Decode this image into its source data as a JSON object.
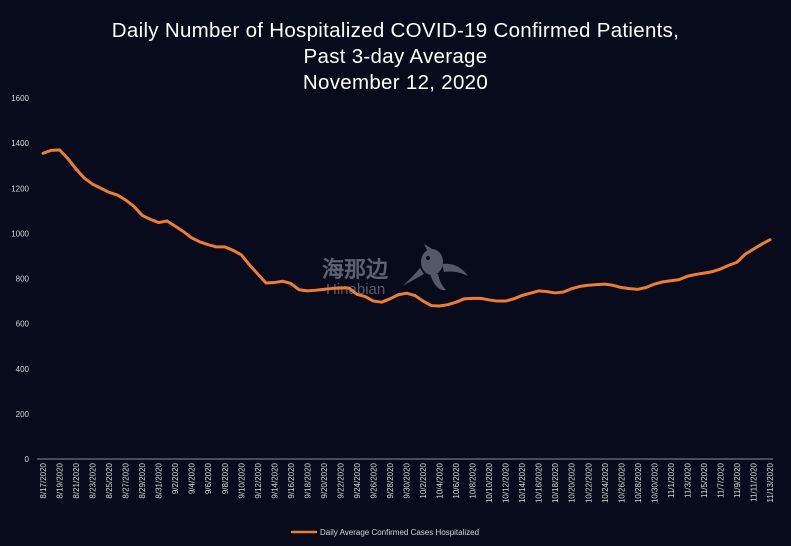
{
  "chart_data": {
    "type": "line",
    "title": [
      "Daily Number of Hospitalized COVID-19 Confirmed Patients,",
      "Past 3-day Average",
      "November 12, 2020"
    ],
    "xlabel": "",
    "ylabel": "",
    "ylim": [
      0,
      1600
    ],
    "yticks": [
      0,
      200,
      400,
      600,
      800,
      1000,
      1200,
      1400,
      1600
    ],
    "grid": false,
    "legend_position": "bottom",
    "categories": [
      "8/17/2020",
      "8/18/2020",
      "8/19/2020",
      "8/20/2020",
      "8/21/2020",
      "8/22/2020",
      "8/23/2020",
      "8/24/2020",
      "8/25/2020",
      "8/26/2020",
      "8/27/2020",
      "8/28/2020",
      "8/29/2020",
      "8/30/2020",
      "8/31/2020",
      "9/1/2020",
      "9/2/2020",
      "9/3/2020",
      "9/4/2020",
      "9/5/2020",
      "9/6/2020",
      "9/7/2020",
      "9/8/2020",
      "9/9/2020",
      "9/10/2020",
      "9/11/2020",
      "9/12/2020",
      "9/13/2020",
      "9/14/2020",
      "9/15/2020",
      "9/16/2020",
      "9/17/2020",
      "9/18/2020",
      "9/19/2020",
      "9/20/2020",
      "9/21/2020",
      "9/22/2020",
      "9/23/2020",
      "9/24/2020",
      "9/25/2020",
      "9/26/2020",
      "9/27/2020",
      "9/28/2020",
      "9/29/2020",
      "9/30/2020",
      "10/1/2020",
      "10/2/2020",
      "10/3/2020",
      "10/4/2020",
      "10/5/2020",
      "10/6/2020",
      "10/7/2020",
      "10/8/2020",
      "10/9/2020",
      "10/10/2020",
      "10/11/2020",
      "10/12/2020",
      "10/13/2020",
      "10/14/2020",
      "10/15/2020",
      "10/16/2020",
      "10/17/2020",
      "10/18/2020",
      "10/19/2020",
      "10/20/2020",
      "10/21/2020",
      "10/22/2020",
      "10/23/2020",
      "10/24/2020",
      "10/25/2020",
      "10/26/2020",
      "10/27/2020",
      "10/28/2020",
      "10/29/2020",
      "10/30/2020",
      "10/31/2020",
      "11/1/2020",
      "11/2/2020",
      "11/3/2020",
      "11/4/2020",
      "11/5/2020",
      "11/6/2020",
      "11/7/2020",
      "11/8/2020",
      "11/9/2020",
      "11/10/2020",
      "11/11/2020",
      "11/12/2020",
      "11/13/2020"
    ],
    "tick_labels": [
      "8/17/2020",
      "8/19/2020",
      "8/21/2020",
      "8/23/2020",
      "8/25/2020",
      "8/27/2020",
      "8/29/2020",
      "8/31/2020",
      "9/2/2020",
      "9/4/2020",
      "9/6/2020",
      "9/8/2020",
      "9/10/2020",
      "9/12/2020",
      "9/14/2020",
      "9/16/2020",
      "9/18/2020",
      "9/20/2020",
      "9/22/2020",
      "9/24/2020",
      "9/26/2020",
      "9/28/2020",
      "9/30/2020",
      "10/2/2020",
      "10/4/2020",
      "10/6/2020",
      "10/8/2020",
      "10/10/2020",
      "10/12/2020",
      "10/14/2020",
      "10/16/2020",
      "10/18/2020",
      "10/20/2020",
      "10/22/2020",
      "10/24/2020",
      "10/26/2020",
      "10/28/2020",
      "10/30/2020",
      "11/1/2020",
      "11/3/2020",
      "11/5/2020",
      "11/7/2020",
      "11/9/2020",
      "11/11/2020",
      "11/13/2020"
    ],
    "series": [
      {
        "name": "Daily Average Confirmed Cases Hospitalized",
        "color": "#ed7d31",
        "values": [
          1355,
          1368,
          1370,
          1332,
          1285,
          1245,
          1218,
          1200,
          1182,
          1170,
          1148,
          1120,
          1080,
          1062,
          1048,
          1055,
          1032,
          1008,
          980,
          962,
          950,
          940,
          940,
          925,
          905,
          860,
          820,
          780,
          782,
          788,
          778,
          750,
          745,
          748,
          752,
          756,
          758,
          758,
          730,
          720,
          700,
          695,
          710,
          728,
          735,
          725,
          700,
          680,
          678,
          684,
          695,
          710,
          712,
          712,
          705,
          700,
          700,
          710,
          725,
          735,
          745,
          742,
          736,
          740,
          755,
          765,
          770,
          773,
          775,
          770,
          760,
          755,
          752,
          760,
          775,
          785,
          790,
          795,
          810,
          818,
          824,
          830,
          842,
          858,
          872,
          908,
          930,
          952,
          972
        ]
      }
    ]
  },
  "watermark": {
    "cn": "海那边",
    "en": "Hinabian"
  }
}
